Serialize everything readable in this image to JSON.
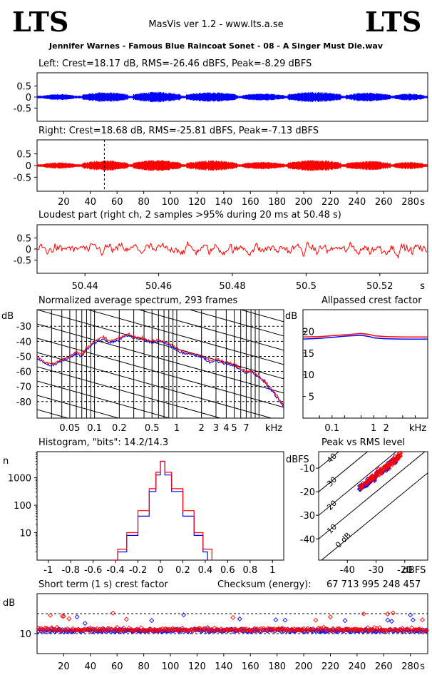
{
  "app": {
    "logo_left": "LTS",
    "logo_right": "LTS",
    "title": "MasVis ver 1.2 - www.lts.a.se",
    "file": "Jennifer Warnes - Famous Blue Raincoat Sonet - 08 - A Singer Must Die.wav"
  },
  "colors": {
    "left": "#0000ff",
    "right": "#ff0000"
  },
  "chart_data": [
    {
      "type": "line",
      "id": "left",
      "title": "Left: Crest=18.17 dB, RMS=-26.46 dBFS, Peak=-8.29 dBFS",
      "y_ticks": [
        "0.5",
        "0",
        "-0.5"
      ],
      "ylim": [
        -1,
        1
      ],
      "series": [
        {
          "color": "#0000ff"
        }
      ]
    },
    {
      "type": "line",
      "id": "right",
      "title": "Right: Crest=18.68 dB, RMS=-25.81 dBFS, Peak=-7.13 dBFS",
      "y_ticks": [
        "0.5",
        "0",
        "-0.5"
      ],
      "x_ticks": [
        "20",
        "40",
        "60",
        "80",
        "100",
        "120",
        "140",
        "160",
        "180",
        "200",
        "220",
        "240",
        "260",
        "280"
      ],
      "x_unit": "s",
      "marker_x": 50.48,
      "ylim": [
        -1,
        1
      ],
      "xlim": [
        0,
        293
      ],
      "series": [
        {
          "color": "#ff0000"
        }
      ]
    },
    {
      "type": "line",
      "id": "loudest",
      "title": "Loudest part (right ch, 2 samples >95% during 20 ms at 50.48 s)",
      "y_ticks": [
        "0.5",
        "0",
        "-0.5"
      ],
      "x_ticks": [
        "50.44",
        "50.46",
        "50.48",
        "50.5",
        "50.52"
      ],
      "x_unit": "s",
      "ylim": [
        -1,
        1
      ],
      "xlim": [
        50.427,
        50.533
      ],
      "series": [
        {
          "color": "#ff0000"
        }
      ]
    },
    {
      "type": "line",
      "id": "spectrum",
      "title": "Normalized average spectrum, 293 frames",
      "ylabel": "dB",
      "y_ticks": [
        "-30",
        "-40",
        "-50",
        "-60",
        "-70",
        "-80"
      ],
      "x_ticks": [
        "0.05",
        "0.1",
        "0.2",
        "0.5",
        "1",
        "2",
        "3",
        "4",
        "5",
        "7",
        "kHz"
      ],
      "ylim": [
        -91,
        -19
      ],
      "xlim_khz": [
        0.02,
        20
      ],
      "series": [
        {
          "color": "#0000ff",
          "x_khz": [
            0.02,
            0.025,
            0.03,
            0.04,
            0.05,
            0.06,
            0.07,
            0.08,
            0.1,
            0.13,
            0.15,
            0.2,
            0.25,
            0.3,
            0.4,
            0.5,
            0.6,
            0.8,
            1,
            1.2,
            1.5,
            2,
            2.5,
            3,
            4,
            5,
            6,
            7,
            8,
            10,
            12,
            15,
            20
          ],
          "y": [
            -51,
            -55,
            -56,
            -53,
            -51,
            -48,
            -50,
            -45,
            -41,
            -38,
            -41,
            -39,
            -36,
            -38,
            -39,
            -41,
            -40,
            -42,
            -46,
            -48,
            -49,
            -50,
            -54,
            -53,
            -55,
            -56,
            -59,
            -61,
            -60,
            -64,
            -68,
            -74,
            -84
          ]
        },
        {
          "color": "#ff0000",
          "x_khz": [
            0.02,
            0.025,
            0.03,
            0.04,
            0.05,
            0.06,
            0.07,
            0.08,
            0.1,
            0.13,
            0.15,
            0.2,
            0.25,
            0.3,
            0.4,
            0.5,
            0.6,
            0.8,
            1,
            1.2,
            1.5,
            2,
            2.5,
            3,
            4,
            5,
            6,
            7,
            8,
            10,
            12,
            15,
            20
          ],
          "y": [
            -50,
            -54,
            -55,
            -52,
            -50,
            -47,
            -49,
            -44,
            -40,
            -37,
            -40,
            -38,
            -35,
            -37,
            -38,
            -40,
            -39,
            -41,
            -45,
            -47,
            -48,
            -49,
            -53,
            -52,
            -54,
            -55,
            -58,
            -60,
            -59,
            -63,
            -67,
            -73,
            -83
          ]
        }
      ]
    },
    {
      "type": "line",
      "id": "allpass",
      "title": "Allpassed crest factor",
      "ylabel": "dB",
      "y_ticks": [
        "20",
        "15",
        "10",
        "5"
      ],
      "x_ticks": [
        "0.1",
        "1",
        "2",
        "kHz"
      ],
      "ylim": [
        0,
        25
      ],
      "series": [
        {
          "color": "#0000ff",
          "x_khz": [
            0.02,
            0.05,
            0.1,
            0.2,
            0.5,
            0.8,
            1,
            2,
            5,
            20
          ],
          "y": [
            18.2,
            18.4,
            18.6,
            18.9,
            19.1,
            18.8,
            18.5,
            18.3,
            18.2,
            18.2
          ]
        },
        {
          "color": "#ff0000",
          "x_khz": [
            0.02,
            0.05,
            0.1,
            0.2,
            0.5,
            0.8,
            1,
            2,
            5,
            20
          ],
          "y": [
            18.7,
            18.8,
            19.0,
            19.2,
            19.5,
            19.3,
            19.0,
            18.8,
            18.7,
            18.7
          ]
        }
      ]
    },
    {
      "type": "line",
      "id": "histogram",
      "title": "Histogram, \"bits\": 14.2/14.3",
      "ylabel": "n",
      "y_ticks": [
        "1000",
        "100",
        "10"
      ],
      "x_ticks": [
        "-1",
        "-0.8",
        "-0.6",
        "-0.4",
        "-0.2",
        "0",
        "0.2",
        "0.4",
        "0.6",
        "0.8",
        "1"
      ],
      "xlim": [
        -1.1,
        1.1
      ],
      "series": [
        {
          "color": "#0000ff",
          "x": [
            -0.42,
            -0.38,
            -0.3,
            -0.2,
            -0.1,
            -0.04,
            0,
            0.04,
            0.1,
            0.2,
            0.3,
            0.38,
            0.42
          ],
          "y_log10": [
            0.0,
            0.3,
            0.9,
            1.6,
            2.5,
            3.1,
            3.6,
            3.1,
            2.5,
            1.6,
            0.9,
            0.3,
            0.0
          ]
        },
        {
          "color": "#ff0000",
          "x": [
            -0.42,
            -0.38,
            -0.3,
            -0.2,
            -0.1,
            -0.04,
            0,
            0.04,
            0.1,
            0.2,
            0.3,
            0.38,
            0.46
          ],
          "y_log10": [
            0.0,
            0.4,
            1.0,
            1.8,
            2.6,
            3.2,
            3.6,
            3.2,
            2.6,
            1.8,
            1.0,
            0.4,
            0.0
          ]
        }
      ]
    },
    {
      "type": "scatter",
      "id": "peak_rms",
      "title": "Peak vs RMS level",
      "ylabel": "dBFS",
      "y_ticks": [
        "-10",
        "-20",
        "-30",
        "-40"
      ],
      "x_ticks": [
        "-40",
        "-30",
        "-20",
        "dBFS"
      ],
      "diag_labels": [
        "40",
        "30",
        "20",
        "10",
        "0 dB"
      ],
      "xlim": [
        -50,
        -12
      ],
      "ylim": [
        -49,
        -3
      ],
      "series": [
        {
          "color": "#0000ff"
        },
        {
          "color": "#ff0000"
        }
      ]
    },
    {
      "type": "scatter",
      "id": "short_crest",
      "title": "Short term (1 s) crest factor",
      "checksum_label": "Checksum (energy):",
      "checksum_value": "67 713 995 248 457",
      "ylabel": "dB",
      "y_ticks": [
        "10"
      ],
      "x_ticks": [
        "20",
        "40",
        "60",
        "80",
        "100",
        "120",
        "140",
        "160",
        "180",
        "200",
        "220",
        "240",
        "260",
        "280"
      ],
      "x_unit": "s",
      "xlim": [
        0,
        293
      ],
      "ylim": [
        0,
        30
      ],
      "series": [
        {
          "color": "#0000ff"
        },
        {
          "color": "#ff0000"
        }
      ]
    }
  ]
}
